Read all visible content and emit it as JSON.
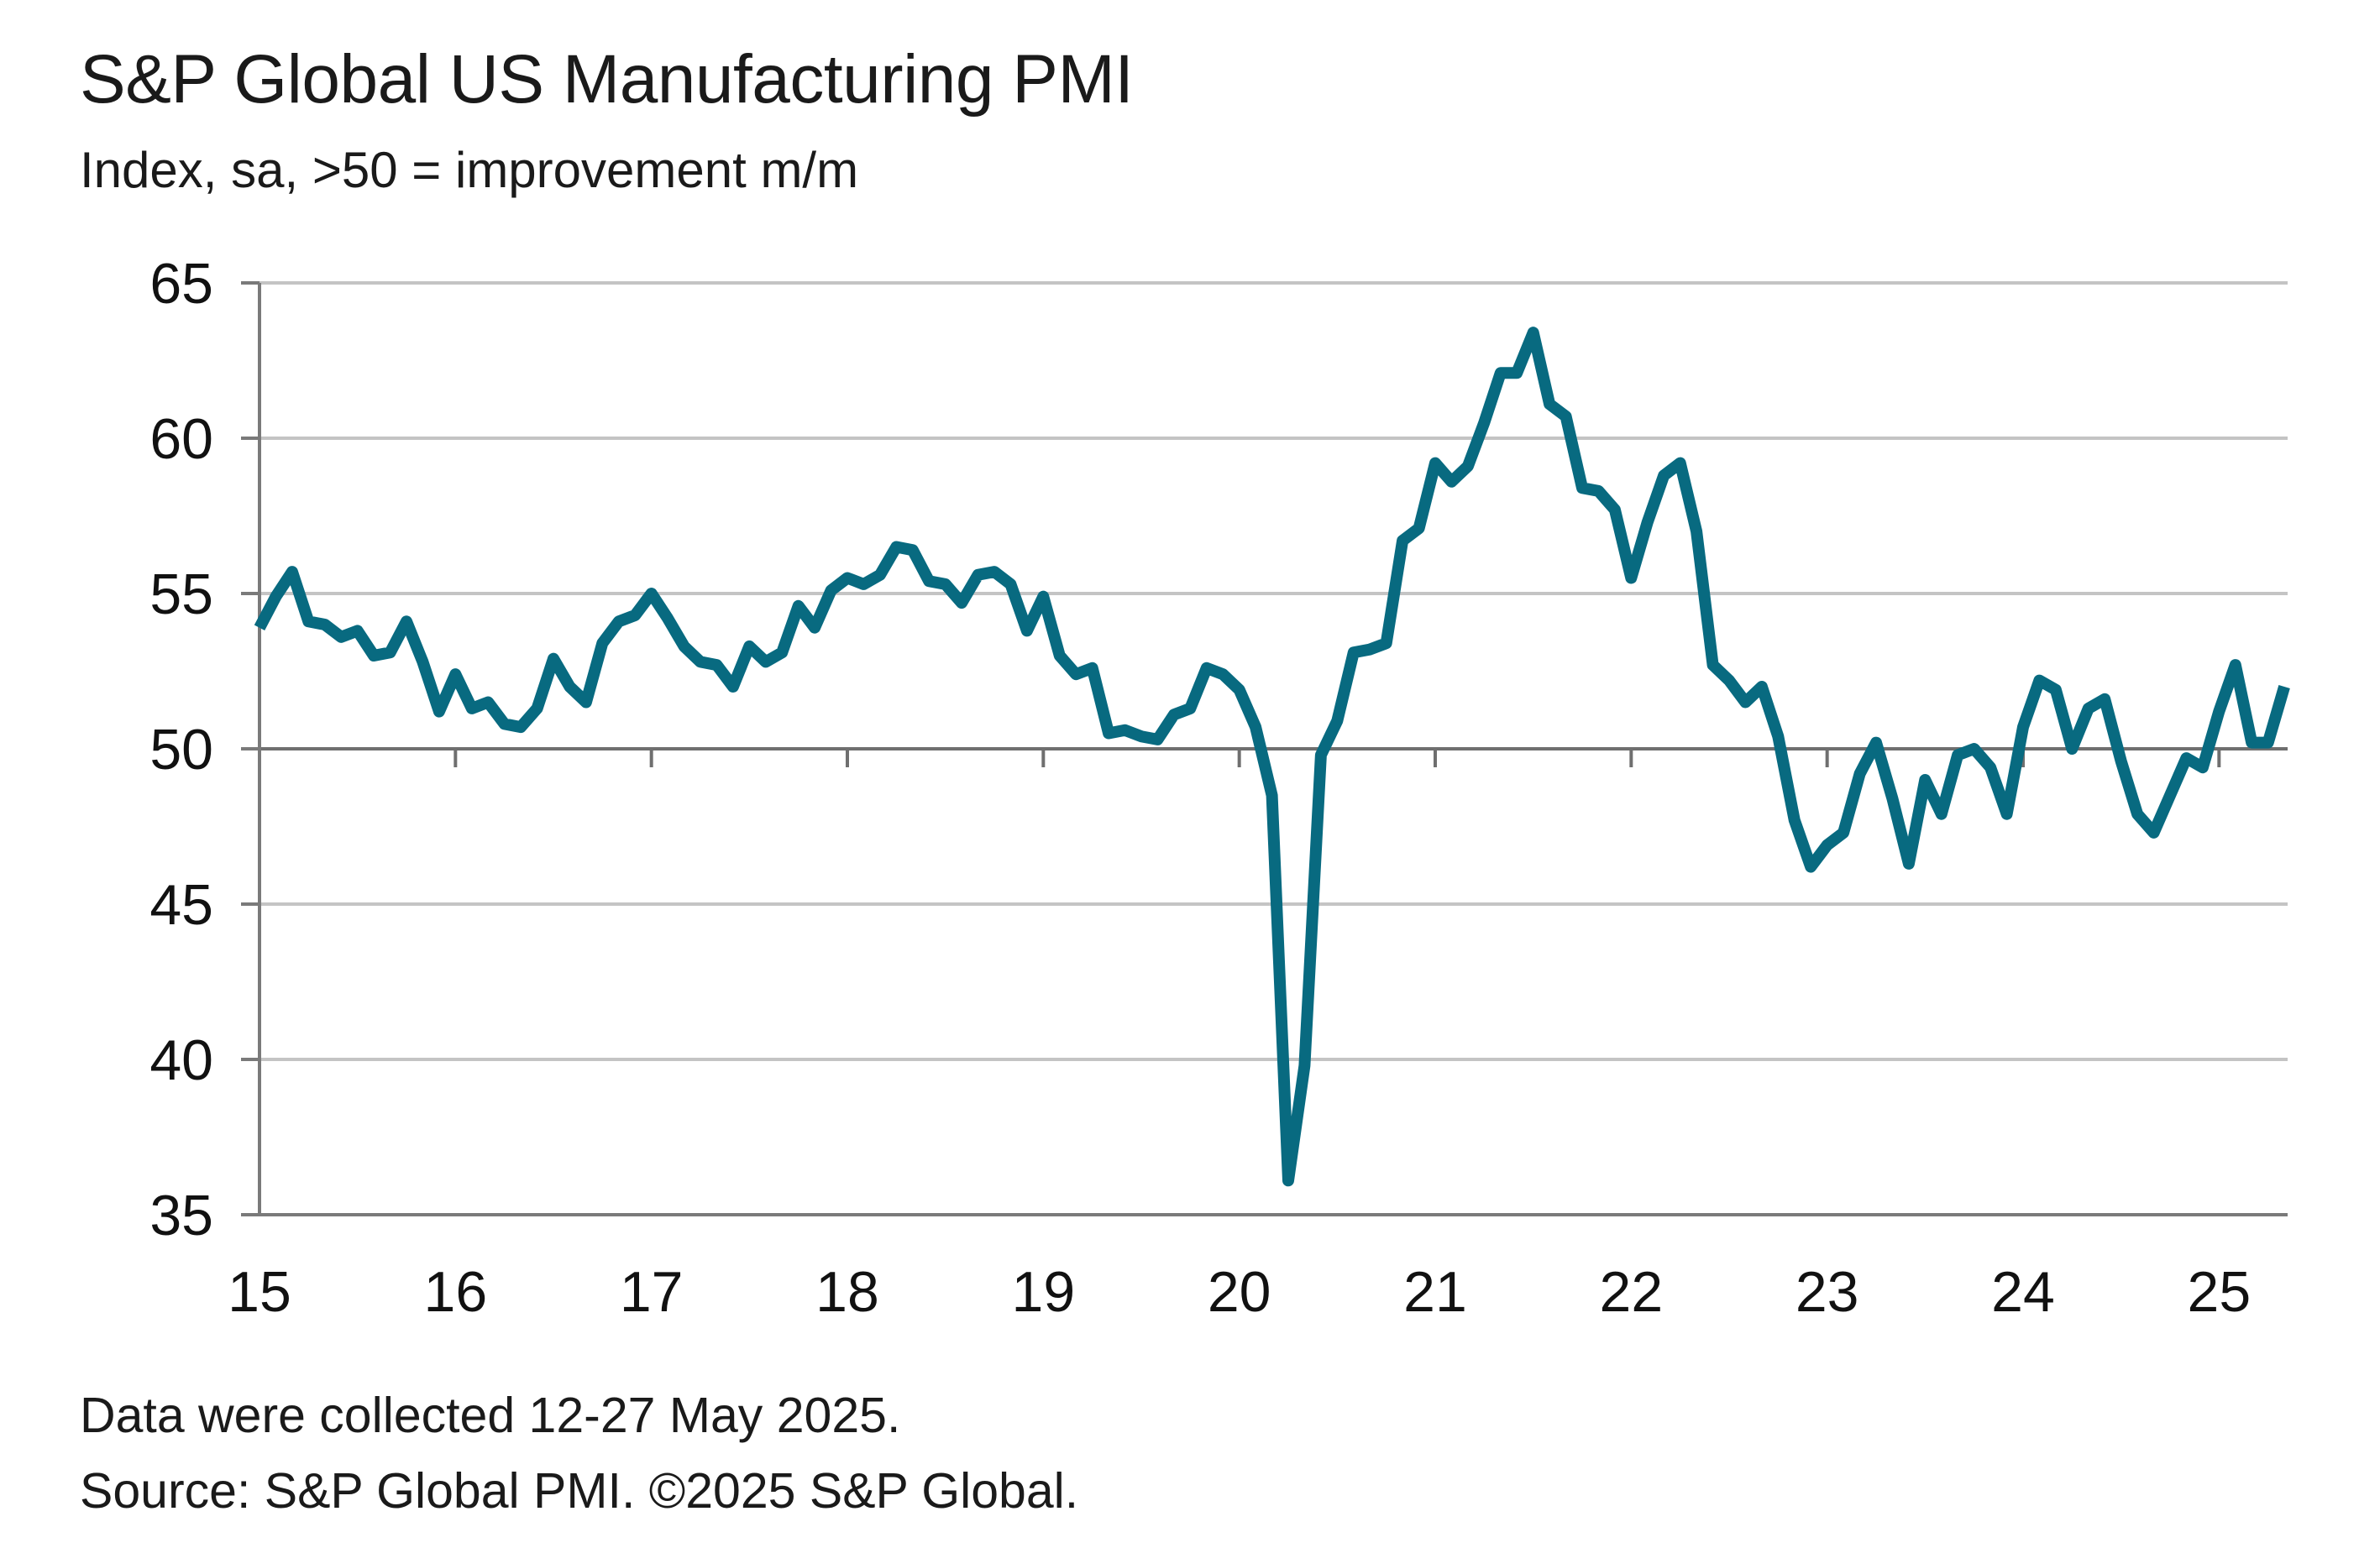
{
  "chart_data": {
    "type": "line",
    "title": "S&P Global US Manufacturing PMI",
    "subtitle": "Index, sa, >50 = improvement m/m",
    "ylim": [
      35,
      65
    ],
    "yticks": [
      35,
      40,
      45,
      50,
      55,
      60,
      65
    ],
    "xlim": [
      2015.0,
      2025.35
    ],
    "xticks": [
      2015,
      2016,
      2017,
      2018,
      2019,
      2020,
      2021,
      2022,
      2023,
      2024,
      2025
    ],
    "xtick_labels": [
      "15",
      "16",
      "17",
      "18",
      "19",
      "20",
      "21",
      "22",
      "23",
      "24",
      "25"
    ],
    "grid": true,
    "reference_line": 50,
    "line_color": "#086a80",
    "series": [
      {
        "x_start": "2015-01",
        "frequency": "monthly",
        "values": [
          53.9,
          54.9,
          55.7,
          54.1,
          54.0,
          53.6,
          53.8,
          53.0,
          53.1,
          54.1,
          52.8,
          51.2,
          52.4,
          51.3,
          51.5,
          50.8,
          50.7,
          51.3,
          52.9,
          52.0,
          51.5,
          53.4,
          54.1,
          54.3,
          55.0,
          54.2,
          53.3,
          52.8,
          52.7,
          52.0,
          53.3,
          52.8,
          53.1,
          54.6,
          53.9,
          55.1,
          55.5,
          55.3,
          55.6,
          56.5,
          56.4,
          55.4,
          55.3,
          54.7,
          55.6,
          55.7,
          55.3,
          53.8,
          54.9,
          53.0,
          52.4,
          52.6,
          50.5,
          50.6,
          50.4,
          50.3,
          51.1,
          51.3,
          52.6,
          52.4,
          51.9,
          50.7,
          48.5,
          36.1,
          39.8,
          49.8,
          50.9,
          53.1,
          53.2,
          53.4,
          56.7,
          57.1,
          59.2,
          58.6,
          59.1,
          60.5,
          62.1,
          62.1,
          63.4,
          61.1,
          60.7,
          58.4,
          58.3,
          57.7,
          55.5,
          57.3,
          58.8,
          59.2,
          57.0,
          52.7,
          52.2,
          51.5,
          52.0,
          50.4,
          47.7,
          46.2,
          46.9,
          47.3,
          49.2,
          50.2,
          48.4,
          46.3,
          49.0,
          47.9,
          49.8,
          50.0,
          49.4,
          47.9,
          50.7,
          52.2,
          51.9,
          50.0,
          51.3,
          51.6,
          49.6,
          47.9,
          47.3,
          48.5,
          49.7,
          49.4,
          51.2,
          52.7,
          50.2,
          50.2,
          52.0
        ]
      }
    ]
  },
  "footnotes": {
    "line1": "Data were collected 12-27 May 2025.",
    "line2": "Source: S&P Global PMI. ©2025 S&P Global."
  }
}
